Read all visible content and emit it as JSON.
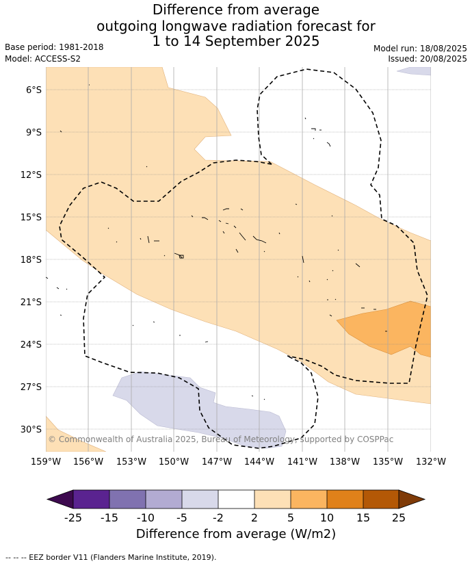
{
  "title": {
    "line1": "Difference from average",
    "line2": "outgoing longwave radiation forecast for",
    "line3": "1 to 14 September 2025"
  },
  "meta": {
    "base_period": "Base period: 1981-2018",
    "model": "Model: ACCESS-S2",
    "model_run": "Model run: 18/08/2025",
    "issued": "Issued: 20/08/2025"
  },
  "map": {
    "lat_labels": [
      "6°S",
      "9°S",
      "12°S",
      "15°S",
      "18°S",
      "21°S",
      "24°S",
      "27°S",
      "30°S"
    ],
    "lon_labels": [
      "159°W",
      "156°W",
      "153°W",
      "150°W",
      "147°W",
      "144°W",
      "141°W",
      "138°W",
      "135°W",
      "132°W"
    ],
    "copyright": "© Commonwealth of Australia 2025, Bureau of Meteorology, supported by COSPPac",
    "colors": {
      "very_light_purple": "#d8d9ea",
      "light_orange": "#fde0b6",
      "orange": "#fbb560"
    }
  },
  "colorbar": {
    "ticks": [
      "-25",
      "-15",
      "-10",
      "-5",
      "-2",
      "2",
      "5",
      "10",
      "15",
      "25"
    ],
    "colors": [
      "#3d0a4f",
      "#5a2390",
      "#8072b0",
      "#b2abd2",
      "#d8d9ea",
      "#ffffff",
      "#fde0b6",
      "#fbb560",
      "#e0811a",
      "#b35806",
      "#7f3b08"
    ],
    "label": "Difference from average (W/m2)"
  },
  "footer": {
    "legend": "-- -- -- EEZ border V11 (Flanders Marine Institute, 2019)."
  }
}
